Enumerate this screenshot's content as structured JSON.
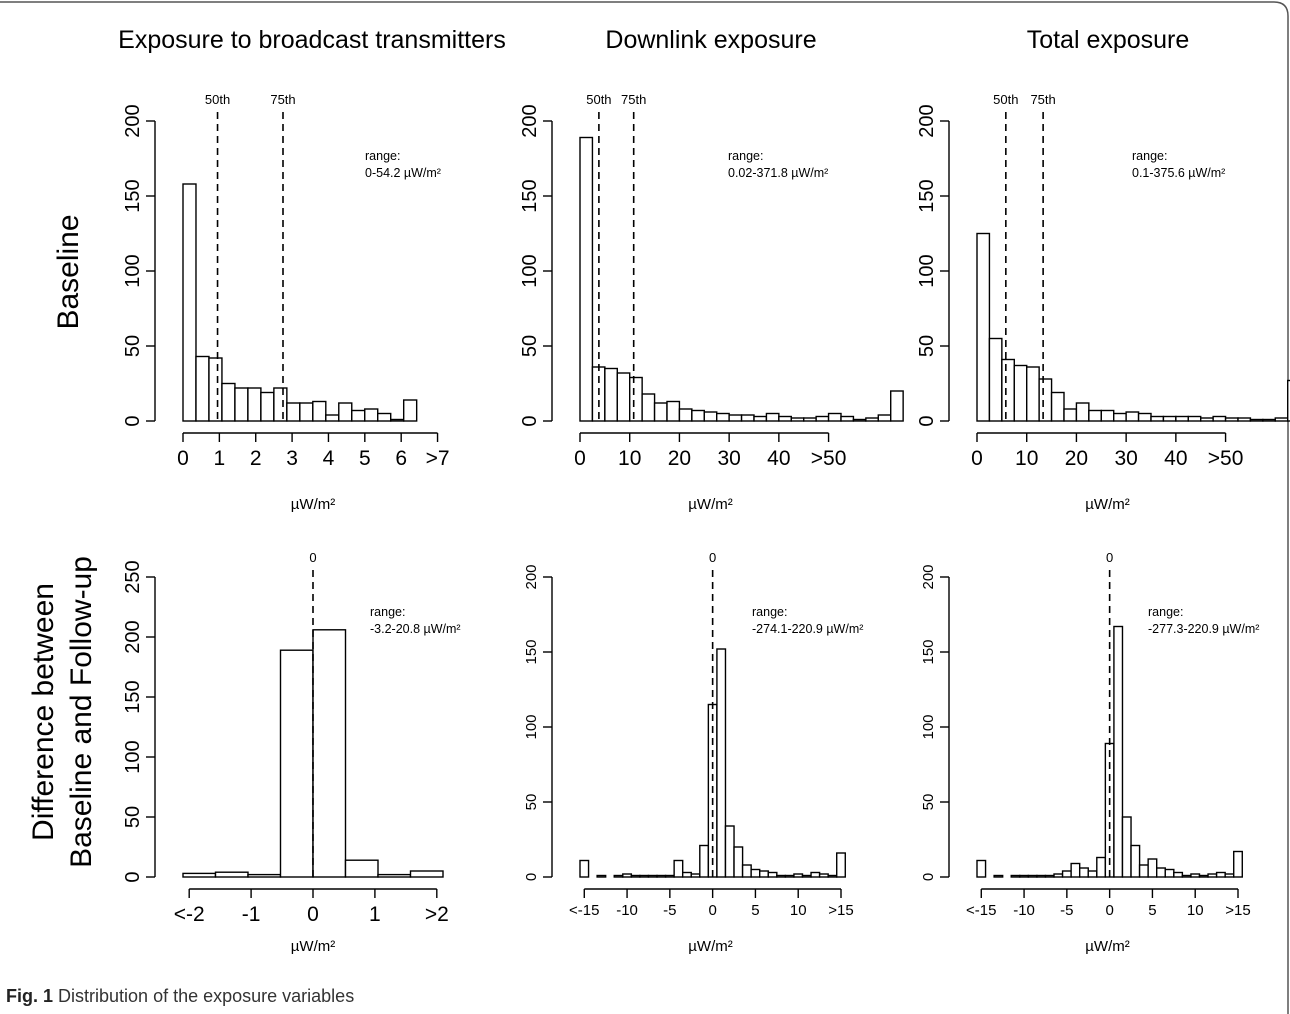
{
  "figure": {
    "col_titles": [
      "Exposure to broadcast transmitters",
      "Downlink exposure",
      "Total exposure"
    ],
    "row_labels": [
      "Baseline",
      "Difference between",
      "Baseline and Follow-up"
    ],
    "caption_label": "Fig. 1",
    "caption_text": "Distribution of the exposure variables"
  },
  "chart_data": [
    {
      "type": "bar",
      "title": "Exposure to broadcast transmitters",
      "row": "Baseline",
      "xlabel": "µW/m²",
      "ylabel": "",
      "xlim": [
        0,
        7.15
      ],
      "ylim": [
        0,
        200
      ],
      "yticks": [
        0,
        50,
        100,
        150,
        200
      ],
      "xticks": [
        {
          "v": 0,
          "t": "0"
        },
        {
          "v": 1,
          "t": "1"
        },
        {
          "v": 2,
          "t": "2"
        },
        {
          "v": 3,
          "t": "3"
        },
        {
          "v": 4,
          "t": "4"
        },
        {
          "v": 5,
          "t": "5"
        },
        {
          "v": 6,
          "t": "6"
        },
        {
          "v": 7,
          "t": ">7"
        }
      ],
      "bin_start": 0,
      "bin_width": 0.357,
      "values": [
        158,
        43,
        42,
        25,
        22,
        22,
        19,
        22,
        12,
        12,
        13,
        4,
        12,
        7,
        8,
        5,
        1,
        14
      ],
      "vlines": [
        {
          "v": 0.95,
          "t": "50th"
        },
        {
          "v": 2.75,
          "t": "75th"
        }
      ],
      "range_label": "range:",
      "range_value": "0-54.2 µW/m²"
    },
    {
      "type": "bar",
      "title": "Downlink exposure",
      "row": "Baseline",
      "xlabel": "µW/m²",
      "ylabel": "",
      "xlim": [
        0,
        52.5
      ],
      "ylim": [
        0,
        200
      ],
      "yticks": [
        0,
        50,
        100,
        150,
        200
      ],
      "xticks": [
        {
          "v": 0,
          "t": "0"
        },
        {
          "v": 10,
          "t": "10"
        },
        {
          "v": 20,
          "t": "20"
        },
        {
          "v": 30,
          "t": "30"
        },
        {
          "v": 40,
          "t": "40"
        },
        {
          "v": 50,
          "t": ">50"
        }
      ],
      "bin_start": 0,
      "bin_width": 2.5,
      "values": [
        189,
        36,
        35,
        32,
        29,
        18,
        12,
        13,
        8,
        7,
        6,
        5,
        4,
        4,
        3,
        5,
        3,
        2,
        2,
        3,
        5,
        3,
        1,
        2,
        4,
        20
      ],
      "vlines": [
        {
          "v": 3.8,
          "t": "50th"
        },
        {
          "v": 10.8,
          "t": "75th"
        }
      ],
      "range_label": "range:",
      "range_value": "0.02-371.8 µW/m²"
    },
    {
      "type": "bar",
      "title": "Total exposure",
      "row": "Baseline",
      "xlabel": "µW/m²",
      "ylabel": "",
      "xlim": [
        0,
        52.5
      ],
      "ylim": [
        0,
        200
      ],
      "yticks": [
        0,
        50,
        100,
        150,
        200
      ],
      "xticks": [
        {
          "v": 0,
          "t": "0"
        },
        {
          "v": 10,
          "t": "10"
        },
        {
          "v": 20,
          "t": "20"
        },
        {
          "v": 30,
          "t": "30"
        },
        {
          "v": 40,
          "t": "40"
        },
        {
          "v": 50,
          "t": ">50"
        }
      ],
      "bin_start": 0,
      "bin_width": 2.5,
      "values": [
        125,
        55,
        41,
        37,
        36,
        28,
        19,
        8,
        12,
        7,
        7,
        5,
        6,
        5,
        3,
        3,
        3,
        3,
        2,
        3,
        2,
        2,
        1,
        1,
        2,
        27
      ],
      "vlines": [
        {
          "v": 5.8,
          "t": "50th"
        },
        {
          "v": 13.3,
          "t": "75th"
        }
      ],
      "range_label": "range:",
      "range_value": "0.1-375.6 µW/m²"
    },
    {
      "type": "bar",
      "title": "Exposure to broadcast transmitters",
      "row": "Difference between Baseline and Follow-up",
      "xlabel": "µW/m²",
      "ylabel": "",
      "xlim": [
        -2.1,
        2.1
      ],
      "ylim": [
        0,
        250
      ],
      "yticks": [
        0,
        50,
        100,
        150,
        200,
        250
      ],
      "xticks": [
        {
          "v": -2,
          "t": "<-2"
        },
        {
          "v": -1,
          "t": "-1"
        },
        {
          "v": 0,
          "t": "0"
        },
        {
          "v": 1,
          "t": "1"
        },
        {
          "v": 2,
          "t": ">2"
        }
      ],
      "bin_start": -2.1,
      "bin_width": 0.525,
      "values": [
        3,
        4,
        2,
        189,
        206,
        14,
        2,
        5
      ],
      "vlines": [
        {
          "v": 0,
          "t": "0"
        }
      ],
      "range_label": "range:",
      "range_value": "-3.2-20.8 µW/m²"
    },
    {
      "type": "bar",
      "title": "Downlink exposure",
      "row": "Difference between Baseline and Follow-up",
      "xlabel": "µW/m²",
      "ylabel": "",
      "xlim": [
        -15.5,
        15
      ],
      "ylim": [
        0,
        200
      ],
      "yticks": [
        0,
        50,
        100,
        150,
        200
      ],
      "xticks": [
        {
          "v": -15,
          "t": "<-15"
        },
        {
          "v": -10,
          "t": "-10"
        },
        {
          "v": -5,
          "t": "-5"
        },
        {
          "v": 0,
          "t": "0"
        },
        {
          "v": 5,
          "t": "5"
        },
        {
          "v": 10,
          "t": "10"
        },
        {
          "v": 15,
          "t": ">15"
        }
      ],
      "bin_start": -15.5,
      "bin_width": 1,
      "values": [
        11,
        0,
        1,
        0,
        1,
        2,
        1,
        1,
        1,
        1,
        1,
        11,
        3,
        2,
        21,
        115,
        152,
        34,
        20,
        8,
        5,
        4,
        3,
        1,
        1,
        2,
        1,
        3,
        2,
        1,
        16
      ],
      "vlines": [
        {
          "v": 0,
          "t": "0"
        }
      ],
      "range_label": "range:",
      "range_value": "-274.1-220.9 µW/m²"
    },
    {
      "type": "bar",
      "title": "Total exposure",
      "row": "Difference between Baseline and Follow-up",
      "xlabel": "µW/m²",
      "ylabel": "",
      "xlim": [
        -15.5,
        15
      ],
      "ylim": [
        0,
        200
      ],
      "yticks": [
        0,
        50,
        100,
        150,
        200
      ],
      "xticks": [
        {
          "v": -15,
          "t": "<-15"
        },
        {
          "v": -10,
          "t": "-10"
        },
        {
          "v": -5,
          "t": "-5"
        },
        {
          "v": 0,
          "t": "0"
        },
        {
          "v": 5,
          "t": "5"
        },
        {
          "v": 10,
          "t": "10"
        },
        {
          "v": 15,
          "t": ">15"
        }
      ],
      "bin_start": -15.5,
      "bin_width": 1,
      "values": [
        11,
        0,
        1,
        0,
        1,
        1,
        1,
        1,
        1,
        2,
        4,
        9,
        6,
        4,
        13,
        89,
        167,
        40,
        21,
        8,
        12,
        6,
        5,
        3,
        1,
        2,
        1,
        2,
        3,
        2,
        17
      ],
      "vlines": [
        {
          "v": 0,
          "t": "0"
        }
      ],
      "range_label": "range:",
      "range_value": "-277.3-220.9 µW/m²"
    }
  ]
}
